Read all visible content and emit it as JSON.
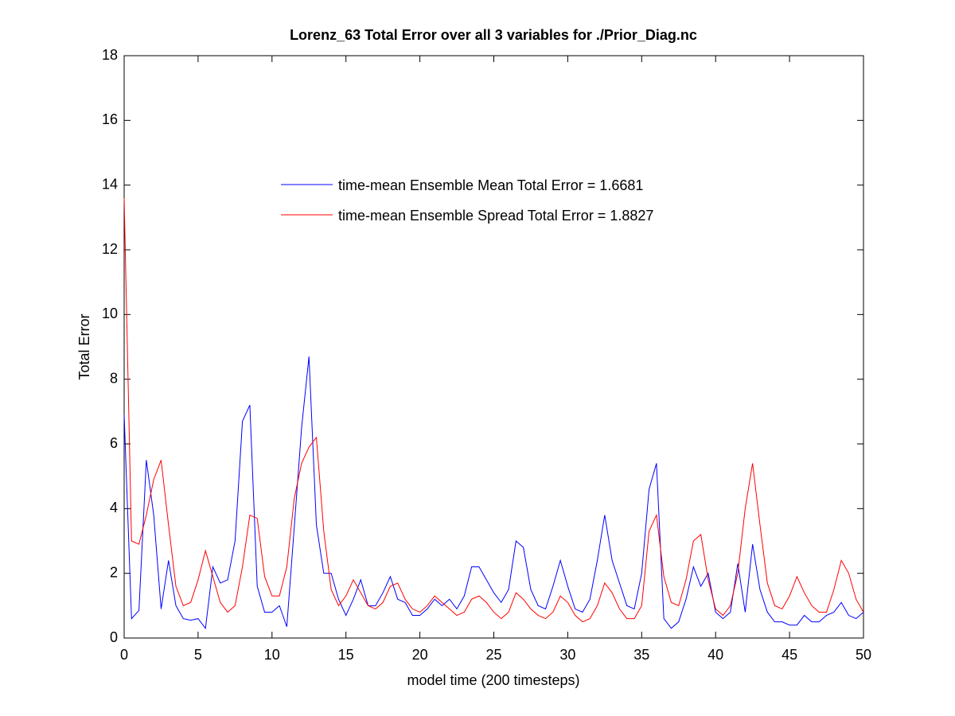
{
  "chart_data": {
    "type": "line",
    "title": "Lorenz_63 Total Error over all 3 variables for ./Prior_Diag.nc",
    "xlabel": "model time (200 timesteps)",
    "ylabel": "Total Error",
    "x": [
      0,
      0.5,
      1,
      1.5,
      2,
      2.5,
      3,
      3.5,
      4,
      4.5,
      5,
      5.5,
      6,
      6.5,
      7,
      7.5,
      8,
      8.5,
      9,
      9.5,
      10,
      10.5,
      11,
      11.5,
      12,
      12.5,
      13,
      13.5,
      14,
      14.5,
      15,
      15.5,
      16,
      16.5,
      17,
      17.5,
      18,
      18.5,
      19,
      19.5,
      20,
      20.5,
      21,
      21.5,
      22,
      22.5,
      23,
      23.5,
      24,
      24.5,
      25,
      25.5,
      26,
      26.5,
      27,
      27.5,
      28,
      28.5,
      29,
      29.5,
      30,
      30.5,
      31,
      31.5,
      32,
      32.5,
      33,
      33.5,
      34,
      34.5,
      35,
      35.5,
      36,
      36.5,
      37,
      37.5,
      38,
      38.5,
      39,
      39.5,
      40,
      40.5,
      41,
      41.5,
      42,
      42.5,
      43,
      43.5,
      44,
      44.5,
      45,
      45.5,
      46,
      46.5,
      47,
      47.5,
      48,
      48.5,
      49,
      49.5,
      50
    ],
    "series": [
      {
        "name": "time-mean Ensemble Mean Total Error = 1.6681",
        "color": "#0000ff",
        "values": [
          6.9,
          0.6,
          0.85,
          5.5,
          3.8,
          0.9,
          2.4,
          1.0,
          0.6,
          0.55,
          0.6,
          0.3,
          2.2,
          1.7,
          1.8,
          3.0,
          6.7,
          7.2,
          1.6,
          0.8,
          0.8,
          1.0,
          0.35,
          3.4,
          6.5,
          8.7,
          3.5,
          2.0,
          2.0,
          1.2,
          0.7,
          1.2,
          1.8,
          1.0,
          1.0,
          1.4,
          1.9,
          1.2,
          1.1,
          0.7,
          0.7,
          0.9,
          1.2,
          1.0,
          1.2,
          0.9,
          1.3,
          2.2,
          2.2,
          1.8,
          1.4,
          1.1,
          1.5,
          3.0,
          2.8,
          1.5,
          1.0,
          0.9,
          1.6,
          2.4,
          1.6,
          0.9,
          0.8,
          1.2,
          2.4,
          3.8,
          2.4,
          1.7,
          1.0,
          0.9,
          2.0,
          4.6,
          5.4,
          0.6,
          0.3,
          0.5,
          1.2,
          2.2,
          1.6,
          2.0,
          0.8,
          0.6,
          0.8,
          2.3,
          0.8,
          2.9,
          1.5,
          0.8,
          0.5,
          0.5,
          0.4,
          0.4,
          0.7,
          0.5,
          0.5,
          0.7,
          0.8,
          1.1,
          0.7,
          0.6,
          0.8
        ]
      },
      {
        "name": "time-mean Ensemble Spread Total Error = 1.8827",
        "color": "#ff0000",
        "values": [
          13.6,
          3.0,
          2.9,
          3.8,
          4.9,
          5.5,
          3.5,
          1.6,
          1.0,
          1.1,
          1.8,
          2.7,
          1.9,
          1.1,
          0.8,
          1.0,
          2.2,
          3.8,
          3.7,
          1.9,
          1.3,
          1.3,
          2.2,
          4.3,
          5.4,
          5.9,
          6.2,
          3.3,
          1.5,
          1.0,
          1.3,
          1.8,
          1.4,
          1.0,
          0.9,
          1.1,
          1.6,
          1.7,
          1.2,
          0.9,
          0.8,
          1.0,
          1.3,
          1.1,
          0.9,
          0.7,
          0.8,
          1.2,
          1.3,
          1.1,
          0.8,
          0.6,
          0.8,
          1.4,
          1.2,
          0.9,
          0.7,
          0.6,
          0.8,
          1.3,
          1.1,
          0.7,
          0.5,
          0.6,
          1.0,
          1.7,
          1.4,
          0.9,
          0.6,
          0.6,
          1.0,
          3.3,
          3.8,
          1.9,
          1.1,
          1.0,
          1.8,
          3.0,
          3.2,
          1.8,
          0.9,
          0.7,
          1.0,
          2.0,
          4.0,
          5.4,
          3.5,
          1.7,
          1.0,
          0.9,
          1.3,
          1.9,
          1.4,
          1.0,
          0.8,
          0.8,
          1.5,
          2.4,
          2.0,
          1.2,
          0.8
        ]
      }
    ],
    "xlim": [
      0,
      50
    ],
    "xticks": [
      0,
      5,
      10,
      15,
      20,
      25,
      30,
      35,
      40,
      45,
      50
    ],
    "ylim": [
      0,
      18
    ],
    "yticks": [
      0,
      2,
      4,
      6,
      8,
      10,
      12,
      14,
      16,
      18
    ],
    "grid": false
  }
}
